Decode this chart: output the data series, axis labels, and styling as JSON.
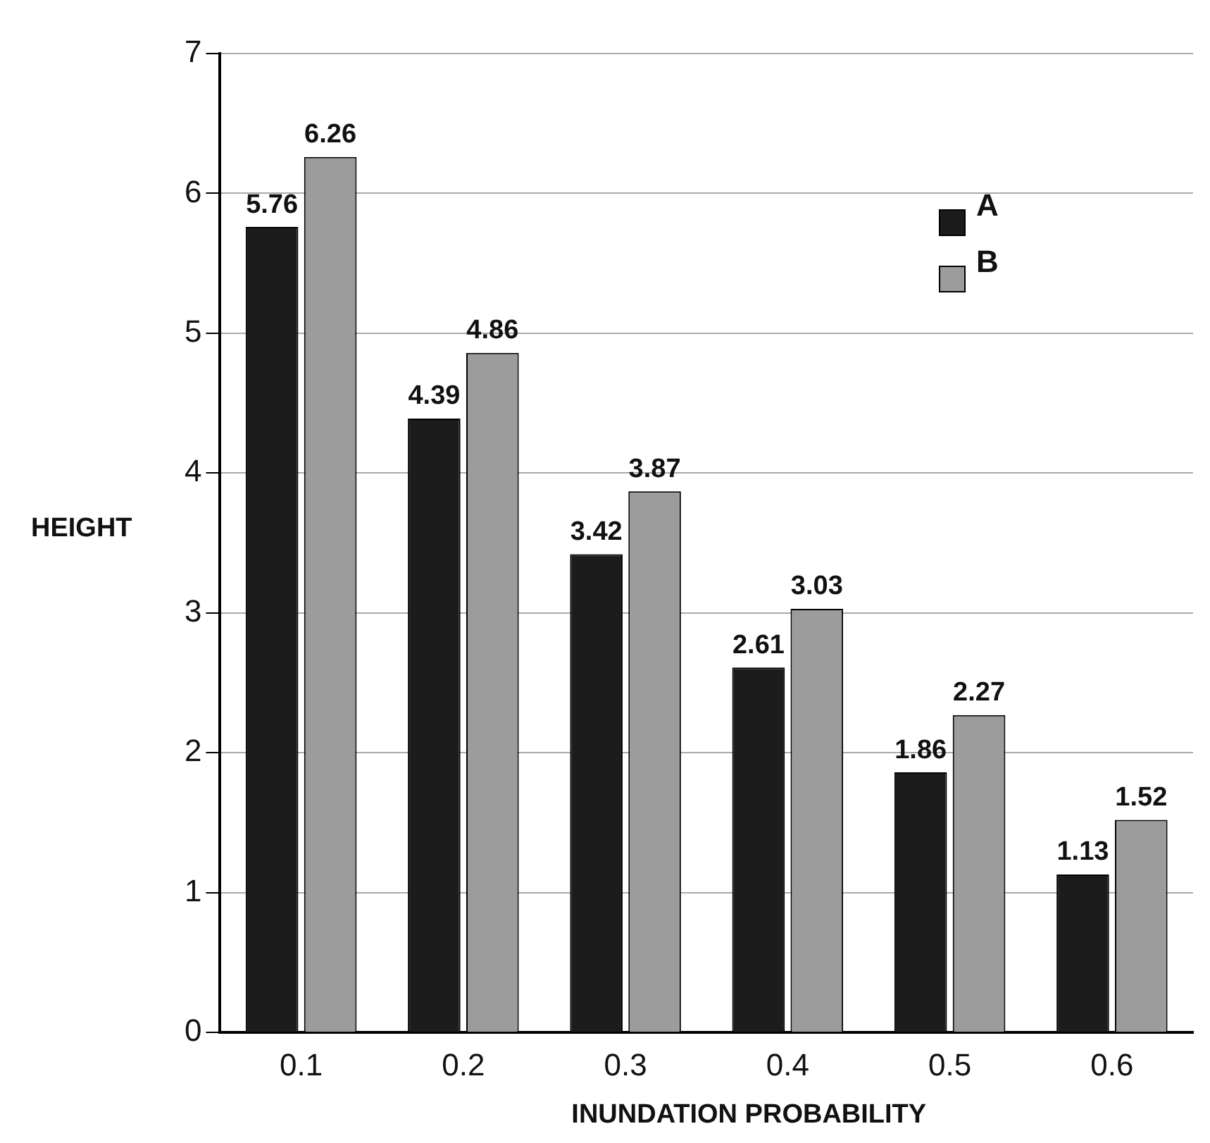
{
  "chart_data": {
    "type": "bar",
    "xlabel": "INUNDATION PROBABILITY",
    "ylabel": "HEIGHT",
    "categories": [
      "0.1",
      "0.2",
      "0.3",
      "0.4",
      "0.5",
      "0.6"
    ],
    "series": [
      {
        "name": "A",
        "color": "#1c1c1c",
        "values": [
          5.76,
          4.39,
          3.42,
          2.61,
          1.86,
          1.13
        ]
      },
      {
        "name": "B",
        "color": "#9c9c9c",
        "values": [
          6.26,
          4.86,
          3.87,
          3.03,
          2.27,
          1.52
        ]
      }
    ],
    "ylim": [
      0,
      7
    ],
    "yticks": [
      0,
      1,
      2,
      3,
      4,
      5,
      6,
      7
    ],
    "grid": "y",
    "legend": "top right",
    "data_labels": true
  }
}
